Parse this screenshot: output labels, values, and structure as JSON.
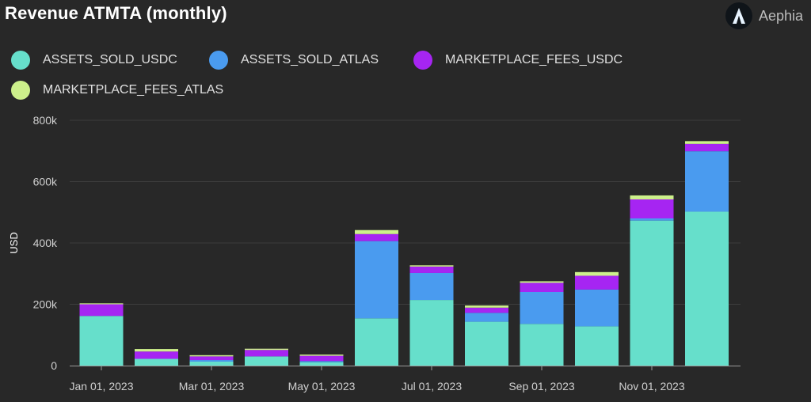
{
  "title": "Revenue ATMTA (monthly)",
  "brand": {
    "name": "Aephia",
    "icon": "aephia-logo-icon"
  },
  "chart_data": {
    "type": "bar",
    "stacked": true,
    "ylabel": "USD",
    "ylim": [
      0,
      800000
    ],
    "yticks": [
      0,
      200000,
      400000,
      600000,
      800000
    ],
    "ytick_labels": [
      "0",
      "200k",
      "400k",
      "600k",
      "800k"
    ],
    "xtick_labels": [
      "Jan 01, 2023",
      "Mar 01, 2023",
      "May 01, 2023",
      "Jul 01, 2023",
      "Sep 01, 2023",
      "Nov 01, 2023"
    ],
    "xtick_positions": [
      0,
      2,
      4,
      6,
      8,
      10
    ],
    "categories": [
      "2023-01",
      "2023-02",
      "2023-03",
      "2023-04",
      "2023-05",
      "2023-06",
      "2023-07",
      "2023-08",
      "2023-09",
      "2023-10",
      "2023-11",
      "2023-12"
    ],
    "grid": true,
    "legend": "top-left",
    "series": [
      {
        "name": "ASSETS_SOLD_USDC",
        "color": "#66dfcb",
        "values": [
          162000,
          22000,
          13000,
          30000,
          11000,
          154000,
          214000,
          143000,
          136000,
          128000,
          473000,
          502000
        ]
      },
      {
        "name": "ASSETS_SOLD_ATLAS",
        "color": "#4a9bef",
        "values": [
          0,
          0,
          5000,
          0,
          4000,
          252000,
          88000,
          29000,
          104000,
          120000,
          7000,
          197000
        ]
      },
      {
        "name": "MARKETPLACE_FEES_USDC",
        "color": "#a625f2",
        "values": [
          38000,
          24000,
          12000,
          21000,
          17000,
          23000,
          21000,
          17000,
          30000,
          45000,
          62000,
          24000
        ]
      },
      {
        "name": "MARKETPLACE_FEES_ATLAS",
        "color": "#cdf08b",
        "values": [
          3000,
          8000,
          4000,
          4000,
          4000,
          13000,
          4000,
          7000,
          5000,
          12000,
          13000,
          9000
        ]
      }
    ]
  }
}
